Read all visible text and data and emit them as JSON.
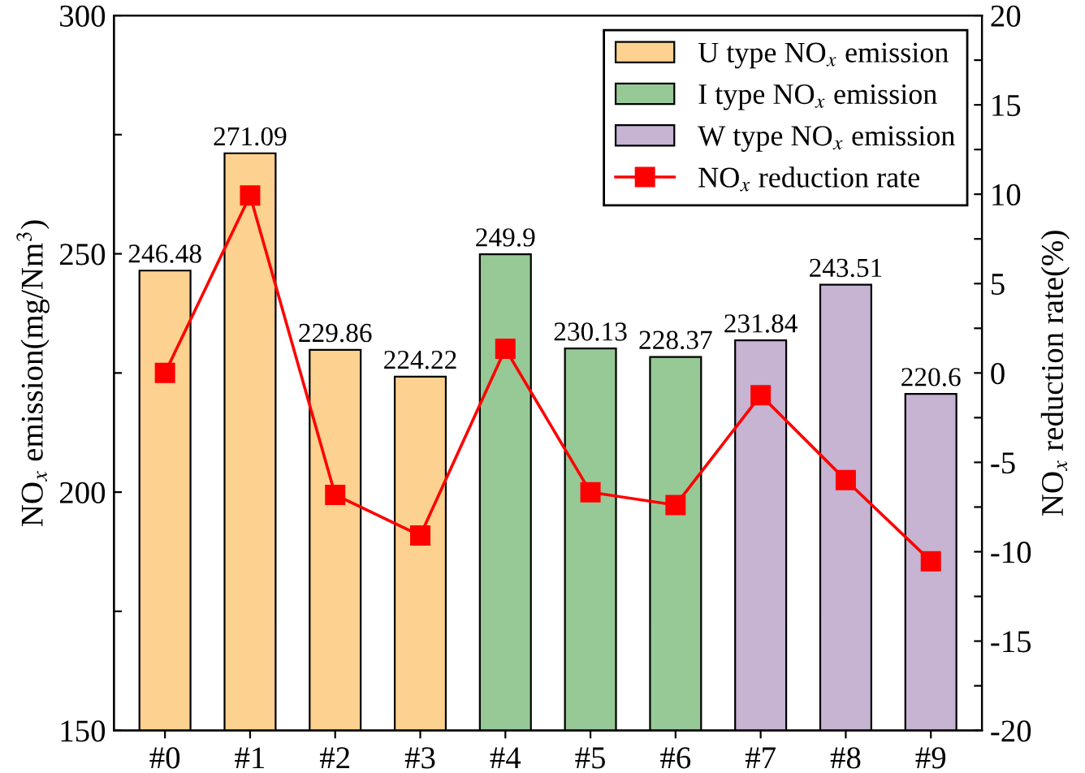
{
  "chart_data": {
    "type": "bar",
    "categories": [
      "#0",
      "#1",
      "#2",
      "#3",
      "#4",
      "#5",
      "#6",
      "#7",
      "#8",
      "#9"
    ],
    "ylabel": "NO$_{x}$ emission(mg/Nm$^{3}$)",
    "y2label": "NO$_{x}$ reduction rate(%)",
    "series": [
      {
        "name": "U type NO$_{x}$ emission",
        "color": "#fdd18f",
        "values": [
          246.48,
          271.09,
          229.86,
          224.22,
          null,
          null,
          null,
          null,
          null,
          null
        ],
        "value_labels": [
          "246.48",
          "271.09",
          "229.86",
          "224.22",
          null,
          null,
          null,
          null,
          null,
          null
        ]
      },
      {
        "name": "I type NO$_{x}$ emission",
        "color": "#97c997",
        "values": [
          null,
          null,
          null,
          null,
          249.9,
          230.13,
          228.37,
          null,
          null,
          null
        ],
        "value_labels": [
          null,
          null,
          null,
          null,
          "249.9",
          "230.13",
          "228.37",
          null,
          null,
          null
        ]
      },
      {
        "name": "W type NO$_{x}$ emission",
        "color": "#c6b4d2",
        "values": [
          null,
          null,
          null,
          null,
          null,
          null,
          null,
          231.84,
          243.51,
          220.6
        ],
        "value_labels": [
          null,
          null,
          null,
          null,
          null,
          null,
          null,
          "231.84",
          "243.51",
          "220.6"
        ]
      },
      {
        "name": "NO$_{x}$ reduction rate",
        "type": "line",
        "axis": "y2",
        "color": "#ff0000",
        "marker": "square",
        "values": [
          0,
          9.93,
          -6.82,
          -9.09,
          1.35,
          -6.67,
          -7.39,
          -1.24,
          -5.99,
          -10.53
        ]
      }
    ],
    "ylim": [
      150,
      300
    ],
    "yticks": [
      150,
      {
        "value": 175,
        "label": null
      },
      200,
      {
        "value": 225,
        "label": null
      },
      250,
      {
        "value": 275,
        "label": null
      },
      300
    ],
    "y2lim": [
      -20,
      20
    ],
    "y2ticks": [
      -20,
      {
        "value": -17.5,
        "label": null
      },
      -15,
      {
        "value": -12.5,
        "label": null
      },
      -10,
      {
        "value": -7.5,
        "label": null
      },
      -5,
      {
        "value": -2.5,
        "label": null
      },
      0,
      {
        "value": 2.5,
        "label": null
      },
      5,
      {
        "value": 7.5,
        "label": null
      },
      10,
      {
        "value": 12.5,
        "label": null
      },
      15,
      {
        "value": 17.5,
        "label": null
      },
      20
    ],
    "grid": false,
    "legend": "top right"
  }
}
